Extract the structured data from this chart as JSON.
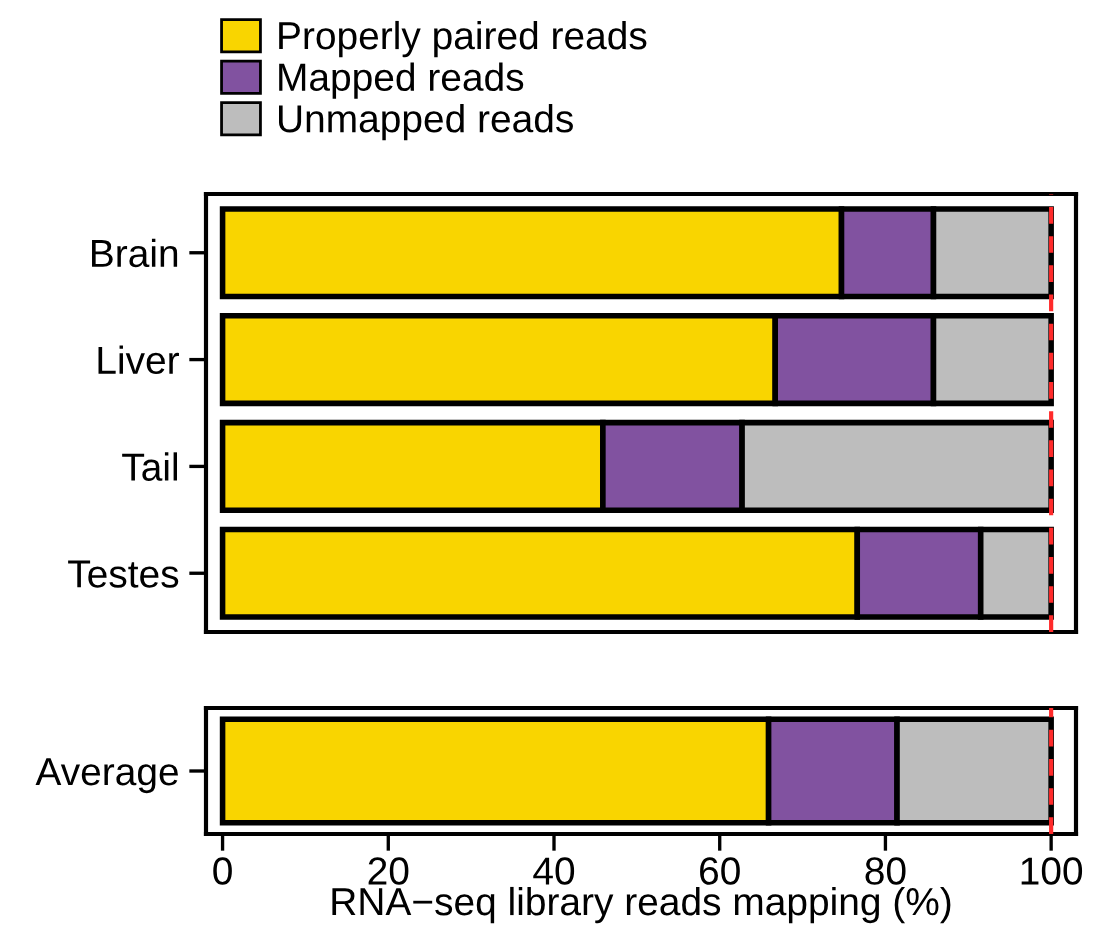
{
  "chart_data": [
    {
      "type": "bar",
      "orientation": "horizontal",
      "stacked": true,
      "categories": [
        "Brain",
        "Liver",
        "Tail",
        "Testes"
      ],
      "series": [
        {
          "name": "Properly paired reads",
          "color": "#f9d500",
          "values": [
            74.7,
            66.7,
            45.9,
            76.6
          ]
        },
        {
          "name": "Mapped reads",
          "color": "#8152a0",
          "values": [
            11.1,
            19.1,
            16.8,
            14.9
          ]
        },
        {
          "name": "Unmapped reads",
          "color": "#bdbdbd",
          "values": [
            14.2,
            14.2,
            37.3,
            8.5
          ]
        }
      ],
      "xlim": [
        -2,
        103
      ],
      "tick_labels": "y",
      "legend": "top left",
      "grid": false,
      "ref_lines": [
        {
          "axis": "x",
          "value": 100,
          "color": "#ff2a2a",
          "line_style": "dashed"
        }
      ]
    },
    {
      "type": "bar",
      "orientation": "horizontal",
      "stacked": true,
      "categories": [
        "Average"
      ],
      "series": [
        {
          "color": "#f9d500",
          "values": [
            65.9
          ]
        },
        {
          "color": "#8152a0",
          "values": [
            15.5
          ]
        },
        {
          "color": "#bdbdbd",
          "values": [
            18.6
          ]
        }
      ],
      "xlim": [
        -2,
        103
      ],
      "xticks": [
        0,
        20,
        40,
        60,
        80,
        100
      ],
      "xlabel": "RNA−seq library reads mapping (%)",
      "grid": false,
      "ref_lines": [
        {
          "axis": "x",
          "value": 100,
          "color": "#ff2a2a",
          "line_style": "dashed"
        }
      ]
    }
  ]
}
